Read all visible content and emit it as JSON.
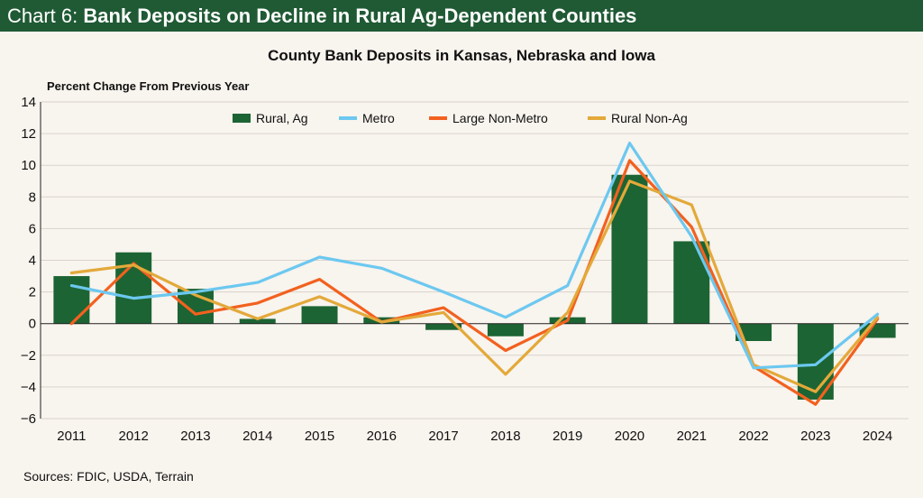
{
  "header": {
    "prefix": "Chart 6: ",
    "title": "Bank Deposits on Decline in Rural Ag-Dependent Counties"
  },
  "footer": {
    "source": "Sources: FDIC, USDA, Terrain"
  },
  "colors": {
    "header_bg": "#1f5a34",
    "background": "#f8f4ee",
    "rural_ag": "#1c6433",
    "metro": "#6cc8f0",
    "large_non_metro": "#f2611f",
    "rural_non_ag": "#e3a93a"
  },
  "chart_data": {
    "type": "bar+line",
    "title": "County Bank Deposits in Kansas, Nebraska and Iowa",
    "ylabel": "Percent Change From Previous Year",
    "xlabel": "",
    "ylim": [
      -6,
      14
    ],
    "yticks": [
      -6,
      -4,
      -2,
      0,
      2,
      4,
      6,
      8,
      10,
      12,
      14
    ],
    "grid": true,
    "legend_position": "top",
    "categories": [
      "2011",
      "2012",
      "2013",
      "2014",
      "2015",
      "2016",
      "2017",
      "2018",
      "2019",
      "2020",
      "2021",
      "2022",
      "2023",
      "2024"
    ],
    "series": [
      {
        "name": "Rural, Ag",
        "type": "bar",
        "color": "#1c6433",
        "values": [
          3.0,
          4.5,
          2.2,
          0.3,
          1.1,
          0.4,
          -0.4,
          -0.8,
          0.4,
          9.4,
          5.2,
          -1.1,
          -4.8,
          -0.9
        ]
      },
      {
        "name": "Metro",
        "type": "line",
        "color": "#6cc8f0",
        "values": [
          2.4,
          1.6,
          2.0,
          2.6,
          4.2,
          3.5,
          2.0,
          0.4,
          2.4,
          11.4,
          5.5,
          -2.8,
          -2.6,
          0.6
        ]
      },
      {
        "name": "Large Non-Metro",
        "type": "line",
        "color": "#f2611f",
        "values": [
          0.0,
          3.8,
          0.6,
          1.3,
          2.8,
          0.1,
          1.0,
          -1.7,
          0.2,
          10.3,
          6.1,
          -2.7,
          -5.1,
          0.3
        ]
      },
      {
        "name": "Rural Non-Ag",
        "type": "line",
        "color": "#e3a93a",
        "values": [
          3.2,
          3.7,
          1.8,
          0.3,
          1.7,
          0.1,
          0.7,
          -3.2,
          0.7,
          9.0,
          7.5,
          -2.6,
          -4.3,
          0.4
        ]
      }
    ]
  }
}
